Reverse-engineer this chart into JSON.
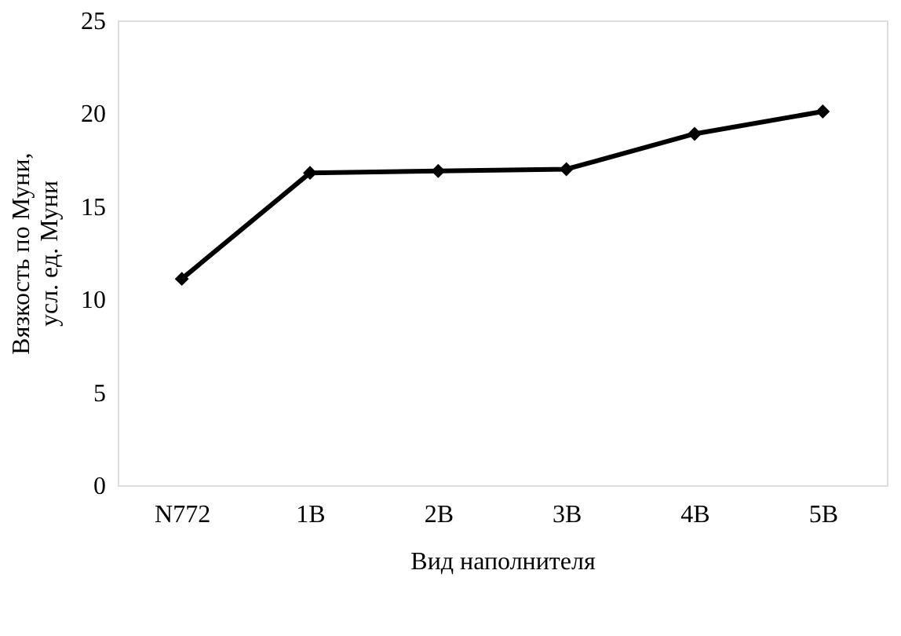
{
  "chart_data": {
    "type": "line",
    "xlabel": "Вид наполнителя",
    "ylabel": "Вязкость по Муни,\nусл. ед. Муни",
    "categories": [
      "N772",
      "1В",
      "2В",
      "3В",
      "4В",
      "5В"
    ],
    "series": [
      {
        "color": "#000000",
        "values": [
          11.1,
          16.8,
          16.9,
          17.0,
          18.9,
          20.1
        ]
      }
    ],
    "ylim": [
      0,
      25
    ],
    "yticks": [
      0,
      5,
      10,
      15,
      20,
      25
    ],
    "grid": false,
    "marker": "diamond",
    "line_style": "solid"
  }
}
